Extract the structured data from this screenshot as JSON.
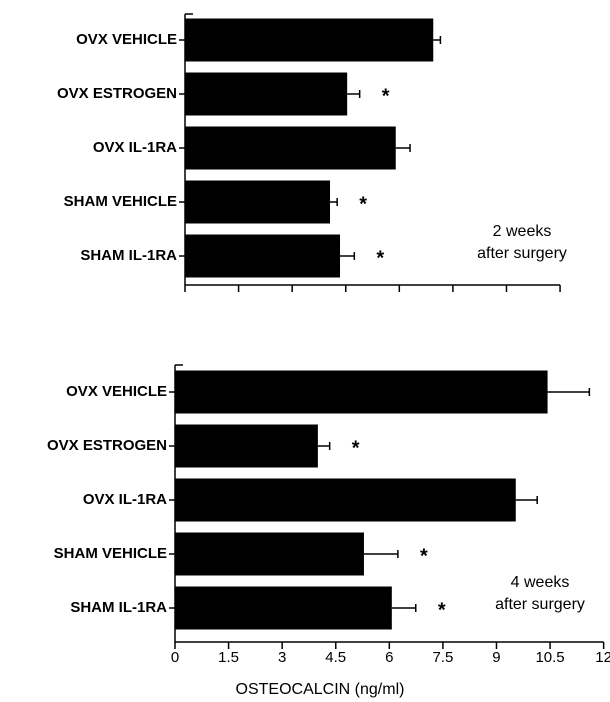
{
  "chart_data": [
    {
      "type": "bar",
      "orientation": "horizontal",
      "categories": [
        "OVX VEHICLE",
        "OVX ESTROGEN",
        "OVX IL-1RA",
        "SHAM VEHICLE",
        "SHAM IL-1RA"
      ],
      "values": [
        6.95,
        4.54,
        5.9,
        4.06,
        4.34
      ],
      "errors": [
        0.2,
        0.35,
        0.4,
        0.2,
        0.4
      ],
      "markers": [
        null,
        "*",
        null,
        "*",
        "*"
      ],
      "color": "#000000",
      "xlim": [
        0,
        10.5
      ],
      "xticks": [
        0,
        1.5,
        3,
        4.5,
        6,
        7.5,
        9,
        10.5
      ],
      "annotation": [
        "2 weeks",
        "after surgery"
      ]
    },
    {
      "type": "bar",
      "orientation": "horizontal",
      "categories": [
        "OVX VEHICLE",
        "OVX ESTROGEN",
        "OVX IL-1RA",
        "SHAM VEHICLE",
        "SHAM IL-1RA"
      ],
      "values": [
        10.43,
        4.0,
        9.54,
        5.29,
        6.07
      ],
      "errors": [
        1.17,
        0.33,
        0.6,
        0.95,
        0.67
      ],
      "markers": [
        null,
        "*",
        null,
        "*",
        "*"
      ],
      "color": "#000000",
      "xlim": [
        0,
        12
      ],
      "xticks": [
        0,
        1.5,
        3,
        4.5,
        6,
        7.5,
        9,
        10.5,
        12
      ],
      "xlabel": "OSTEOCALCIN (ng/ml)",
      "annotation": [
        "4 weeks",
        "after surgery"
      ]
    }
  ]
}
